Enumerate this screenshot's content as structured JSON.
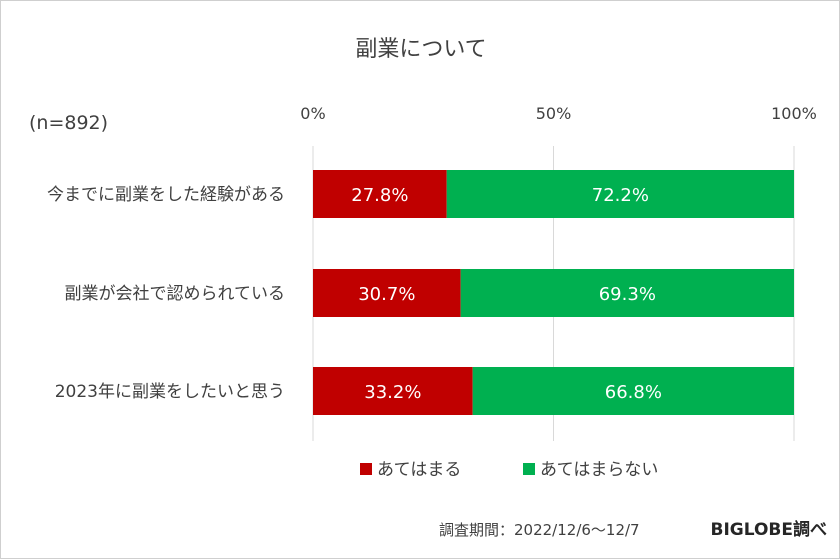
{
  "chart_data": {
    "type": "bar",
    "orientation": "horizontal",
    "stacked": true,
    "title": "副業について",
    "sample_note": "(n=892)",
    "categories": [
      "今までに副業をした経験がある",
      "副業が会社で認められている",
      "2023年に副業をしたいと思う"
    ],
    "series": [
      {
        "name": "あてはまる",
        "values": [
          27.8,
          30.7,
          33.2
        ],
        "labels": [
          "27.8%",
          "30.7%",
          "33.2%"
        ],
        "color": "#c00000"
      },
      {
        "name": "あてはまらない",
        "values": [
          72.2,
          69.3,
          66.8
        ],
        "labels": [
          "72.2%",
          "69.3%",
          "66.8%"
        ],
        "color": "#00b050"
      }
    ],
    "x_ticks": [
      {
        "value": 0,
        "label": "0%"
      },
      {
        "value": 50,
        "label": "50%"
      },
      {
        "value": 100,
        "label": "100%"
      }
    ],
    "xlim": [
      0,
      100
    ],
    "grid": true,
    "legend": "bottom"
  },
  "footer": {
    "survey_period": "調査期間：2022/12/6～12/7",
    "source": "BIGLOBE調べ"
  }
}
